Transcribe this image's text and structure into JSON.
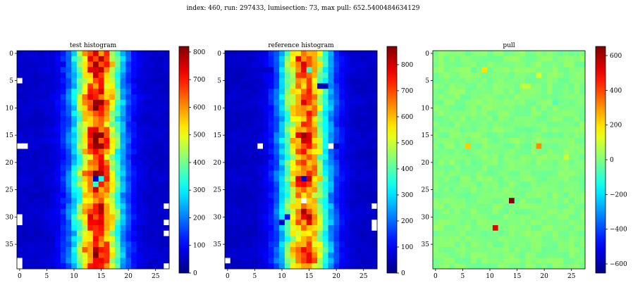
{
  "suptitle": "index: 460, run: 297433, lumisection: 73, max pull: 652.5400484634129",
  "colors": {
    "text": "#000000",
    "background": "#ffffff",
    "missing_bin": "#ffffff"
  },
  "colormap": "jet",
  "chart_data": [
    {
      "type": "heatmap",
      "title": "test histogram",
      "nx": 28,
      "ny": 40,
      "x_ticks": [
        0,
        5,
        10,
        15,
        20,
        25
      ],
      "y_ticks": [
        0,
        5,
        10,
        15,
        20,
        25,
        30,
        35
      ],
      "vmin": 0,
      "vmax": 820,
      "colorbar_ticks": [
        0,
        100,
        200,
        300,
        400,
        500,
        600,
        700,
        800
      ],
      "profile": "detector",
      "special_bins": [
        {
          "x": 0,
          "y": 5,
          "v": null
        },
        {
          "x": 0,
          "y": 17,
          "v": null
        },
        {
          "x": 1,
          "y": 17,
          "v": null
        },
        {
          "x": 0,
          "y": 30,
          "v": null
        },
        {
          "x": 0,
          "y": 31,
          "v": null
        },
        {
          "x": 0,
          "y": 38,
          "v": null
        },
        {
          "x": 0,
          "y": 39,
          "v": null
        },
        {
          "x": 27,
          "y": 28,
          "v": null
        },
        {
          "x": 27,
          "y": 31,
          "v": null
        },
        {
          "x": 27,
          "y": 33,
          "v": null
        },
        {
          "x": 27,
          "y": 39,
          "v": null
        },
        {
          "x": 14,
          "y": 23,
          "v": 60
        },
        {
          "x": 15,
          "y": 23,
          "v": 320
        },
        {
          "x": 14,
          "y": 24,
          "v": 350
        },
        {
          "x": 7,
          "y": 2,
          "v": 90
        },
        {
          "x": 8,
          "y": 2,
          "v": 80
        },
        {
          "x": 23,
          "y": 9,
          "v": 60
        },
        {
          "x": 24,
          "y": 9,
          "v": 60
        }
      ]
    },
    {
      "type": "heatmap",
      "title": "reference histogram",
      "nx": 28,
      "ny": 40,
      "x_ticks": [
        0,
        5,
        10,
        15,
        20,
        25
      ],
      "y_ticks": [
        0,
        5,
        10,
        15,
        20,
        25,
        30,
        35
      ],
      "vmin": 0,
      "vmax": 870,
      "colorbar_ticks": [
        0,
        100,
        200,
        300,
        400,
        500,
        600,
        700,
        800
      ],
      "profile": "detector",
      "special_bins": [
        {
          "x": 6,
          "y": 17,
          "v": null
        },
        {
          "x": 19,
          "y": 17,
          "v": null
        },
        {
          "x": 14,
          "y": 23,
          "v": 60
        },
        {
          "x": 14,
          "y": 25,
          "v": 680
        },
        {
          "x": 14,
          "y": 27,
          "v": null
        },
        {
          "x": 27,
          "y": 28,
          "v": null
        },
        {
          "x": 27,
          "y": 31,
          "v": null
        },
        {
          "x": 27,
          "y": 32,
          "v": null
        },
        {
          "x": 0,
          "y": 38,
          "v": null
        },
        {
          "x": 11,
          "y": 30,
          "v": 120
        },
        {
          "x": 10,
          "y": 31,
          "v": 60
        },
        {
          "x": 17,
          "y": 6,
          "v": 60
        },
        {
          "x": 18,
          "y": 6,
          "v": 50
        },
        {
          "x": 7,
          "y": 3,
          "v": 60
        },
        {
          "x": 8,
          "y": 3,
          "v": 60
        },
        {
          "x": 20,
          "y": 17,
          "v": 60
        },
        {
          "x": 15,
          "y": 3,
          "v": 380
        }
      ]
    },
    {
      "type": "heatmap",
      "title": "pull",
      "nx": 28,
      "ny": 40,
      "x_ticks": [
        0,
        5,
        10,
        15,
        20,
        25
      ],
      "y_ticks": [
        0,
        5,
        10,
        15,
        20,
        25,
        30,
        35
      ],
      "vmin": -652.54,
      "vmax": 652.54,
      "colorbar_ticks": [
        -600,
        -400,
        -200,
        0,
        200,
        400,
        600
      ],
      "profile": "flat",
      "special_bins": [
        {
          "x": 14,
          "y": 27,
          "v": 652.54
        },
        {
          "x": 11,
          "y": 32,
          "v": 520
        },
        {
          "x": 6,
          "y": 17,
          "v": 230
        },
        {
          "x": 19,
          "y": 17,
          "v": 310
        },
        {
          "x": 9,
          "y": 3,
          "v": 200
        },
        {
          "x": 19,
          "y": 4,
          "v": 120
        },
        {
          "x": 16,
          "y": 6,
          "v": 80
        },
        {
          "x": 17,
          "y": 6,
          "v": 80
        },
        {
          "x": 22,
          "y": 9,
          "v": -60
        },
        {
          "x": 24,
          "y": 19,
          "v": 90
        }
      ]
    }
  ]
}
